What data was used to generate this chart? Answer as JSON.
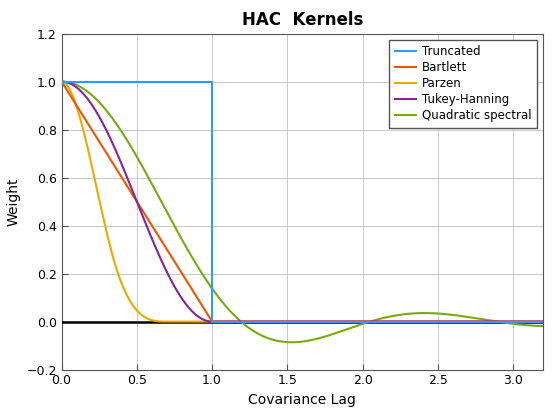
{
  "title": "HAC  Kernels",
  "xlabel": "Covariance Lag",
  "ylabel": "Weight",
  "xlim": [
    0,
    3.2
  ],
  "ylim": [
    -0.2,
    1.2
  ],
  "xticks": [
    0,
    0.5,
    1.0,
    1.5,
    2.0,
    2.5,
    3.0
  ],
  "yticks": [
    -0.2,
    0.0,
    0.2,
    0.4,
    0.6,
    0.8,
    1.0,
    1.2
  ],
  "legend_labels": [
    "Truncated",
    "Bartlett",
    "Parzen",
    "Tukey-Hanning",
    "Quadratic spectral"
  ],
  "colors": {
    "truncated": "#3399FF",
    "bartlett": "#EE5500",
    "parzen": "#EEA800",
    "tukey": "#882299",
    "qs": "#77AA11",
    "zero_line": "#000000"
  },
  "bw_truncated": 1.0,
  "bw_bartlett": 1.0,
  "bw_parzen": 0.7,
  "bw_tukey": 1.0,
  "bw_qs": 1.0
}
